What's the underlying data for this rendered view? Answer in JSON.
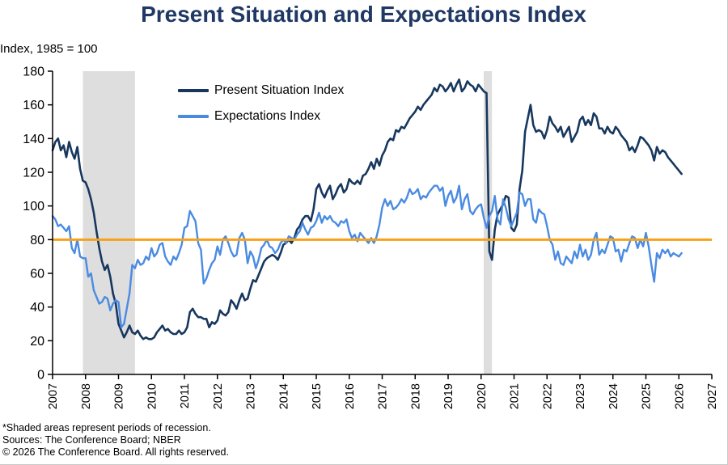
{
  "title": "Present Situation and Expectations Index",
  "axis_note": "Index, 1985 = 100",
  "footnotes": [
    "*Shaded areas represent periods of recession.",
    "Sources:  The Conference Board;  NBER",
    "© 2026 The Conference Board. All rights reserved."
  ],
  "colors": {
    "title": "#1F3864",
    "present_situation": "#17375E",
    "expectations": "#4A8BE2",
    "reference_line": "#F7A11A",
    "recession_band": "#DEDEDE",
    "axis": "#000000"
  },
  "chart_data": {
    "type": "line",
    "title": "Present Situation and Expectations Index",
    "ylabel": "Index, 1985 = 100",
    "xlabel": "",
    "grid": false,
    "legend_position": "upper-left-inside",
    "xlim": [
      2007,
      2027
    ],
    "ylim": [
      0,
      180
    ],
    "y_ticks": [
      0,
      20,
      40,
      60,
      80,
      100,
      120,
      140,
      160,
      180
    ],
    "x_ticks": [
      2007,
      2008,
      2009,
      2010,
      2011,
      2012,
      2013,
      2014,
      2015,
      2016,
      2017,
      2018,
      2019,
      2020,
      2021,
      2022,
      2023,
      2024,
      2025,
      2026,
      2027
    ],
    "x_start": 2007.0,
    "points_per_year": 12,
    "recession_color": "#DEDEDE",
    "recessions": [
      [
        2007.92,
        2009.5
      ],
      [
        2020.08,
        2020.33
      ]
    ],
    "reference_line": {
      "value": 80,
      "color": "#F7A11A"
    },
    "series": [
      {
        "name": "Present Situation Index",
        "color": "#17375E",
        "width": 2.6,
        "values": [
          133,
          138,
          140,
          133,
          136,
          129,
          138,
          132,
          128,
          135,
          122,
          115,
          114,
          110,
          104,
          96,
          85,
          75,
          67,
          62,
          65,
          58,
          48,
          42,
          30,
          26,
          22,
          25,
          29,
          25,
          24,
          26,
          23,
          21,
          22,
          21,
          21,
          22,
          25,
          27,
          29,
          26,
          27,
          25,
          24,
          24,
          26,
          24,
          25,
          28,
          37,
          39,
          36,
          34,
          34,
          33,
          33,
          28,
          31,
          30,
          32,
          38,
          36,
          35,
          37,
          44,
          42,
          39,
          44,
          48,
          44,
          45,
          51,
          56,
          55,
          59,
          63,
          67,
          69,
          70,
          71,
          70,
          68,
          72,
          77,
          78,
          80,
          78,
          81,
          86,
          88,
          92,
          94,
          94,
          91,
          98,
          110,
          113,
          108,
          105,
          109,
          112,
          104,
          107,
          111,
          113,
          108,
          110,
          116,
          114,
          113,
          115,
          113,
          118,
          119,
          122,
          126,
          122,
          128,
          124,
          130,
          133,
          138,
          140,
          139,
          145,
          144,
          147,
          146,
          149,
          152,
          154,
          156,
          159,
          157,
          160,
          162,
          164,
          166,
          170,
          168,
          172,
          171,
          168,
          170,
          173,
          168,
          172,
          175,
          168,
          170,
          174,
          172,
          171,
          168,
          172,
          170,
          168,
          167,
          73,
          68,
          86,
          95,
          98,
          101,
          106,
          105,
          87,
          85,
          89,
          110,
          121,
          144,
          152,
          160,
          148,
          144,
          145,
          144,
          140,
          145,
          153,
          149,
          147,
          144,
          147,
          141,
          144,
          147,
          138,
          141,
          144,
          151,
          153,
          148,
          151,
          148,
          155,
          153,
          146,
          146,
          143,
          147,
          144,
          143,
          147,
          145,
          142,
          140,
          138,
          133,
          135,
          132,
          136,
          141,
          140,
          138,
          136,
          133,
          127,
          135,
          131,
          133,
          132,
          129,
          127,
          125,
          123,
          121,
          119
        ]
      },
      {
        "name": "Expectations Index",
        "color": "#4A8BE2",
        "width": 2.4,
        "values": [
          94,
          92,
          88,
          89,
          87,
          85,
          88,
          75,
          72,
          80,
          70,
          69,
          69,
          58,
          60,
          50,
          46,
          42,
          43,
          46,
          45,
          38,
          42,
          44,
          43,
          28,
          30,
          39,
          48,
          65,
          63,
          68,
          65,
          66,
          70,
          68,
          75,
          70,
          72,
          77,
          78,
          70,
          67,
          65,
          70,
          68,
          72,
          77,
          87,
          88,
          97,
          94,
          91,
          78,
          74,
          54,
          57,
          62,
          66,
          68,
          76,
          71,
          80,
          82,
          78,
          73,
          70,
          71,
          81,
          84,
          80,
          66,
          73,
          70,
          63,
          68,
          75,
          77,
          80,
          76,
          75,
          72,
          74,
          78,
          80,
          78,
          82,
          81,
          80,
          83,
          85,
          90,
          86,
          83,
          87,
          88,
          91,
          96,
          90,
          94,
          92,
          94,
          91,
          90,
          88,
          91,
          90,
          92,
          85,
          81,
          83,
          79,
          84,
          82,
          80,
          78,
          81,
          78,
          82,
          89,
          99,
          104,
          100,
          103,
          98,
          99,
          101,
          104,
          102,
          105,
          110,
          107,
          108,
          110,
          104,
          106,
          105,
          108,
          110,
          112,
          112,
          109,
          111,
          100,
          106,
          109,
          102,
          105,
          112,
          98,
          104,
          107,
          97,
          95,
          98,
          100,
          101,
          93,
          87,
          94,
          97,
          106,
          92,
          89,
          104,
          99,
          92,
          88,
          92,
          96,
          108,
          107,
          100,
          104,
          104,
          92,
          90,
          98,
          96,
          95,
          88,
          80,
          77,
          68,
          73,
          66,
          65,
          70,
          68,
          66,
          73,
          69,
          77,
          70,
          74,
          68,
          71,
          80,
          84,
          71,
          74,
          72,
          77,
          82,
          81,
          73,
          74,
          67,
          74,
          73,
          78,
          82,
          81,
          75,
          80,
          76,
          84,
          76,
          65,
          55,
          72,
          69,
          74,
          72,
          74,
          70,
          72,
          71,
          70,
          72
        ]
      }
    ]
  }
}
